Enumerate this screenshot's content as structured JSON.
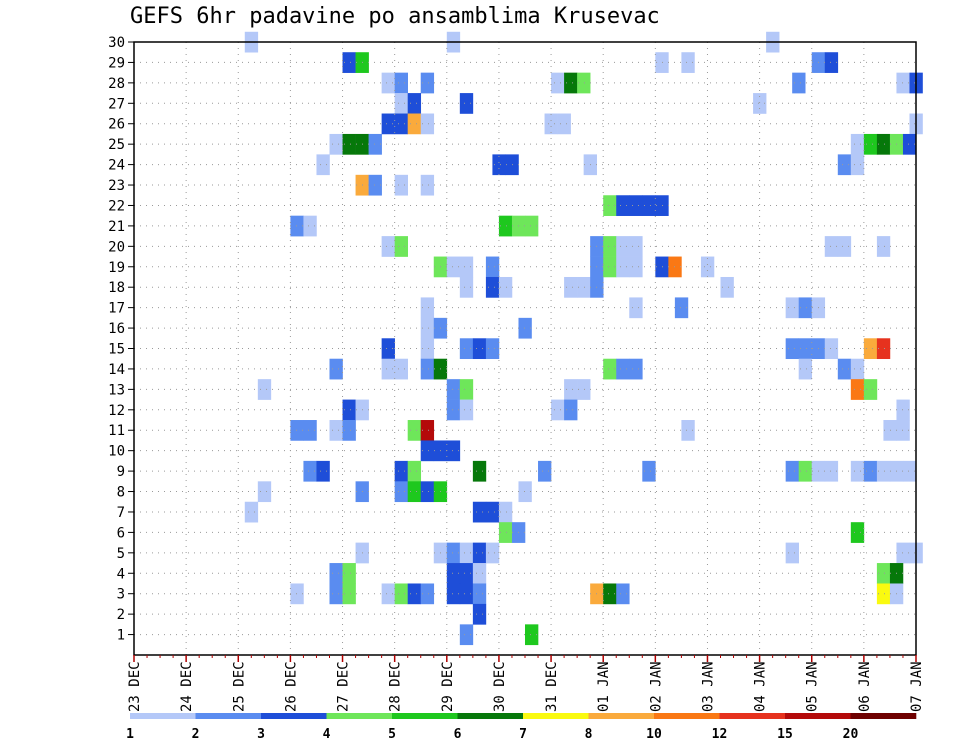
{
  "title": "GEFS 6hr padavine po ansamblima Krusevac",
  "chart_data": {
    "type": "heatmap",
    "title": "GEFS 6hr padavine po ansamblima Krusevac",
    "x_tick_labels": [
      "23 DEC",
      "24 DEC",
      "25 DEC",
      "26 DEC",
      "27 DEC",
      "28 DEC",
      "29 DEC",
      "30 DEC",
      "31 DEC",
      "01 JAN",
      "02 JAN",
      "03 JAN",
      "04 JAN",
      "05 JAN",
      "06 JAN",
      "07 JAN"
    ],
    "x_range_hours": [
      0,
      360
    ],
    "x_step_hours": 6,
    "y_tick_labels": [
      "1",
      "2",
      "3",
      "4",
      "5",
      "6",
      "7",
      "8",
      "9",
      "10",
      "11",
      "12",
      "13",
      "14",
      "15",
      "16",
      "17",
      "18",
      "19",
      "20",
      "21",
      "22",
      "23",
      "24",
      "25",
      "26",
      "27",
      "28",
      "29",
      "30"
    ],
    "y_range": [
      0,
      30
    ],
    "grid": true,
    "colorbar": {
      "labels": [
        "1",
        "2",
        "3",
        "4",
        "5",
        "6",
        "7",
        "8",
        "10",
        "12",
        "15",
        "20"
      ],
      "colors": [
        "#b4c8f8",
        "#5a8cf0",
        "#1e4ed8",
        "#6ee65a",
        "#1ec81e",
        "#06780a",
        "#fafa10",
        "#faaa3c",
        "#fa7814",
        "#e6321e",
        "#b40a0a",
        "#6e0000"
      ]
    },
    "cells_format": "[member, x_hours, level(1-12)]",
    "cells": [
      [
        30,
        54,
        1
      ],
      [
        30,
        147,
        1
      ],
      [
        30,
        294,
        1
      ],
      [
        29,
        99,
        3
      ],
      [
        29,
        105,
        5
      ],
      [
        29,
        243,
        1
      ],
      [
        29,
        255,
        1
      ],
      [
        29,
        315,
        2
      ],
      [
        29,
        321,
        3
      ],
      [
        28,
        117,
        1
      ],
      [
        28,
        123,
        2
      ],
      [
        28,
        135,
        2
      ],
      [
        28,
        195,
        1
      ],
      [
        28,
        201,
        6
      ],
      [
        28,
        207,
        4
      ],
      [
        28,
        306,
        2
      ],
      [
        28,
        354,
        1
      ],
      [
        28,
        360,
        3
      ],
      [
        27,
        123,
        1
      ],
      [
        27,
        129,
        3
      ],
      [
        27,
        153,
        3
      ],
      [
        27,
        288,
        1
      ],
      [
        26,
        117,
        3
      ],
      [
        26,
        123,
        3
      ],
      [
        26,
        129,
        8
      ],
      [
        26,
        135,
        1
      ],
      [
        26,
        192,
        1
      ],
      [
        26,
        198,
        1
      ],
      [
        26,
        360,
        1
      ],
      [
        25,
        93,
        1
      ],
      [
        25,
        99,
        6
      ],
      [
        25,
        105,
        6
      ],
      [
        25,
        111,
        2
      ],
      [
        25,
        333,
        1
      ],
      [
        25,
        339,
        5
      ],
      [
        25,
        345,
        6
      ],
      [
        25,
        351,
        4
      ],
      [
        25,
        357,
        3
      ],
      [
        24,
        87,
        1
      ],
      [
        24,
        168,
        3
      ],
      [
        24,
        174,
        3
      ],
      [
        24,
        210,
        1
      ],
      [
        24,
        327,
        2
      ],
      [
        24,
        333,
        1
      ],
      [
        23,
        105,
        8
      ],
      [
        23,
        111,
        2
      ],
      [
        23,
        123,
        1
      ],
      [
        23,
        135,
        1
      ],
      [
        22,
        219,
        4
      ],
      [
        22,
        225,
        3
      ],
      [
        22,
        231,
        3
      ],
      [
        22,
        237,
        3
      ],
      [
        22,
        243,
        3
      ],
      [
        21,
        75,
        2
      ],
      [
        21,
        81,
        1
      ],
      [
        21,
        171,
        5
      ],
      [
        21,
        177,
        4
      ],
      [
        21,
        183,
        4
      ],
      [
        20,
        117,
        1
      ],
      [
        20,
        123,
        4
      ],
      [
        20,
        213,
        2
      ],
      [
        20,
        219,
        4
      ],
      [
        20,
        225,
        1
      ],
      [
        20,
        231,
        1
      ],
      [
        20,
        321,
        1
      ],
      [
        20,
        327,
        1
      ],
      [
        20,
        345,
        1
      ],
      [
        19,
        141,
        4
      ],
      [
        19,
        147,
        1
      ],
      [
        19,
        153,
        1
      ],
      [
        19,
        165,
        2
      ],
      [
        19,
        213,
        2
      ],
      [
        19,
        219,
        4
      ],
      [
        19,
        225,
        1
      ],
      [
        19,
        231,
        1
      ],
      [
        19,
        243,
        3
      ],
      [
        19,
        249,
        9
      ],
      [
        19,
        264,
        1
      ],
      [
        18,
        153,
        1
      ],
      [
        18,
        165,
        3
      ],
      [
        18,
        171,
        1
      ],
      [
        18,
        201,
        1
      ],
      [
        18,
        207,
        1
      ],
      [
        18,
        213,
        2
      ],
      [
        18,
        273,
        1
      ],
      [
        17,
        135,
        1
      ],
      [
        17,
        231,
        1
      ],
      [
        17,
        252,
        2
      ],
      [
        17,
        303,
        1
      ],
      [
        17,
        309,
        2
      ],
      [
        17,
        315,
        1
      ],
      [
        16,
        135,
        1
      ],
      [
        16,
        141,
        2
      ],
      [
        16,
        180,
        2
      ],
      [
        15,
        117,
        3
      ],
      [
        15,
        135,
        1
      ],
      [
        15,
        153,
        2
      ],
      [
        15,
        159,
        3
      ],
      [
        15,
        165,
        2
      ],
      [
        15,
        303,
        2
      ],
      [
        15,
        309,
        2
      ],
      [
        15,
        315,
        2
      ],
      [
        15,
        321,
        1
      ],
      [
        15,
        339,
        8
      ],
      [
        15,
        345,
        10
      ],
      [
        14,
        93,
        2
      ],
      [
        14,
        117,
        1
      ],
      [
        14,
        123,
        1
      ],
      [
        14,
        135,
        2
      ],
      [
        14,
        141,
        6
      ],
      [
        14,
        219,
        4
      ],
      [
        14,
        225,
        2
      ],
      [
        14,
        231,
        2
      ],
      [
        14,
        309,
        1
      ],
      [
        14,
        327,
        2
      ],
      [
        14,
        333,
        1
      ],
      [
        13,
        60,
        1
      ],
      [
        13,
        147,
        2
      ],
      [
        13,
        153,
        4
      ],
      [
        13,
        201,
        1
      ],
      [
        13,
        207,
        1
      ],
      [
        13,
        333,
        9
      ],
      [
        13,
        339,
        4
      ],
      [
        12,
        99,
        3
      ],
      [
        12,
        105,
        1
      ],
      [
        12,
        147,
        2
      ],
      [
        12,
        153,
        1
      ],
      [
        12,
        195,
        1
      ],
      [
        12,
        201,
        2
      ],
      [
        12,
        354,
        1
      ],
      [
        11,
        75,
        2
      ],
      [
        11,
        81,
        2
      ],
      [
        11,
        93,
        1
      ],
      [
        11,
        99,
        2
      ],
      [
        11,
        129,
        4
      ],
      [
        11,
        135,
        11
      ],
      [
        11,
        255,
        1
      ],
      [
        11,
        348,
        1
      ],
      [
        11,
        354,
        1
      ],
      [
        10,
        135,
        3
      ],
      [
        10,
        141,
        3
      ],
      [
        10,
        147,
        3
      ],
      [
        9,
        81,
        2
      ],
      [
        9,
        87,
        3
      ],
      [
        9,
        123,
        3
      ],
      [
        9,
        129,
        4
      ],
      [
        9,
        159,
        6
      ],
      [
        9,
        189,
        2
      ],
      [
        9,
        237,
        2
      ],
      [
        9,
        303,
        2
      ],
      [
        9,
        309,
        4
      ],
      [
        9,
        315,
        1
      ],
      [
        9,
        321,
        1
      ],
      [
        9,
        333,
        1
      ],
      [
        9,
        339,
        2
      ],
      [
        9,
        345,
        1
      ],
      [
        9,
        351,
        1
      ],
      [
        9,
        357,
        1
      ],
      [
        8,
        60,
        1
      ],
      [
        8,
        105,
        2
      ],
      [
        8,
        123,
        2
      ],
      [
        8,
        129,
        5
      ],
      [
        8,
        135,
        3
      ],
      [
        8,
        141,
        5
      ],
      [
        8,
        180,
        1
      ],
      [
        7,
        54,
        1
      ],
      [
        7,
        159,
        3
      ],
      [
        7,
        165,
        3
      ],
      [
        7,
        171,
        1
      ],
      [
        6,
        171,
        4
      ],
      [
        6,
        177,
        2
      ],
      [
        6,
        333,
        5
      ],
      [
        5,
        105,
        1
      ],
      [
        5,
        141,
        1
      ],
      [
        5,
        147,
        2
      ],
      [
        5,
        153,
        1
      ],
      [
        5,
        159,
        3
      ],
      [
        5,
        165,
        1
      ],
      [
        5,
        303,
        1
      ],
      [
        5,
        354,
        1
      ],
      [
        5,
        360,
        1
      ],
      [
        4,
        93,
        2
      ],
      [
        4,
        99,
        4
      ],
      [
        4,
        147,
        3
      ],
      [
        4,
        153,
        3
      ],
      [
        4,
        159,
        1
      ],
      [
        4,
        345,
        4
      ],
      [
        4,
        351,
        6
      ],
      [
        3,
        75,
        1
      ],
      [
        3,
        93,
        2
      ],
      [
        3,
        99,
        4
      ],
      [
        3,
        117,
        1
      ],
      [
        3,
        123,
        4
      ],
      [
        3,
        129,
        3
      ],
      [
        3,
        135,
        2
      ],
      [
        3,
        147,
        3
      ],
      [
        3,
        153,
        3
      ],
      [
        3,
        159,
        2
      ],
      [
        3,
        213,
        8
      ],
      [
        3,
        219,
        6
      ],
      [
        3,
        225,
        2
      ],
      [
        3,
        345,
        7
      ],
      [
        3,
        351,
        1
      ],
      [
        2,
        159,
        3
      ],
      [
        1,
        153,
        2
      ],
      [
        1,
        183,
        5
      ]
    ]
  }
}
